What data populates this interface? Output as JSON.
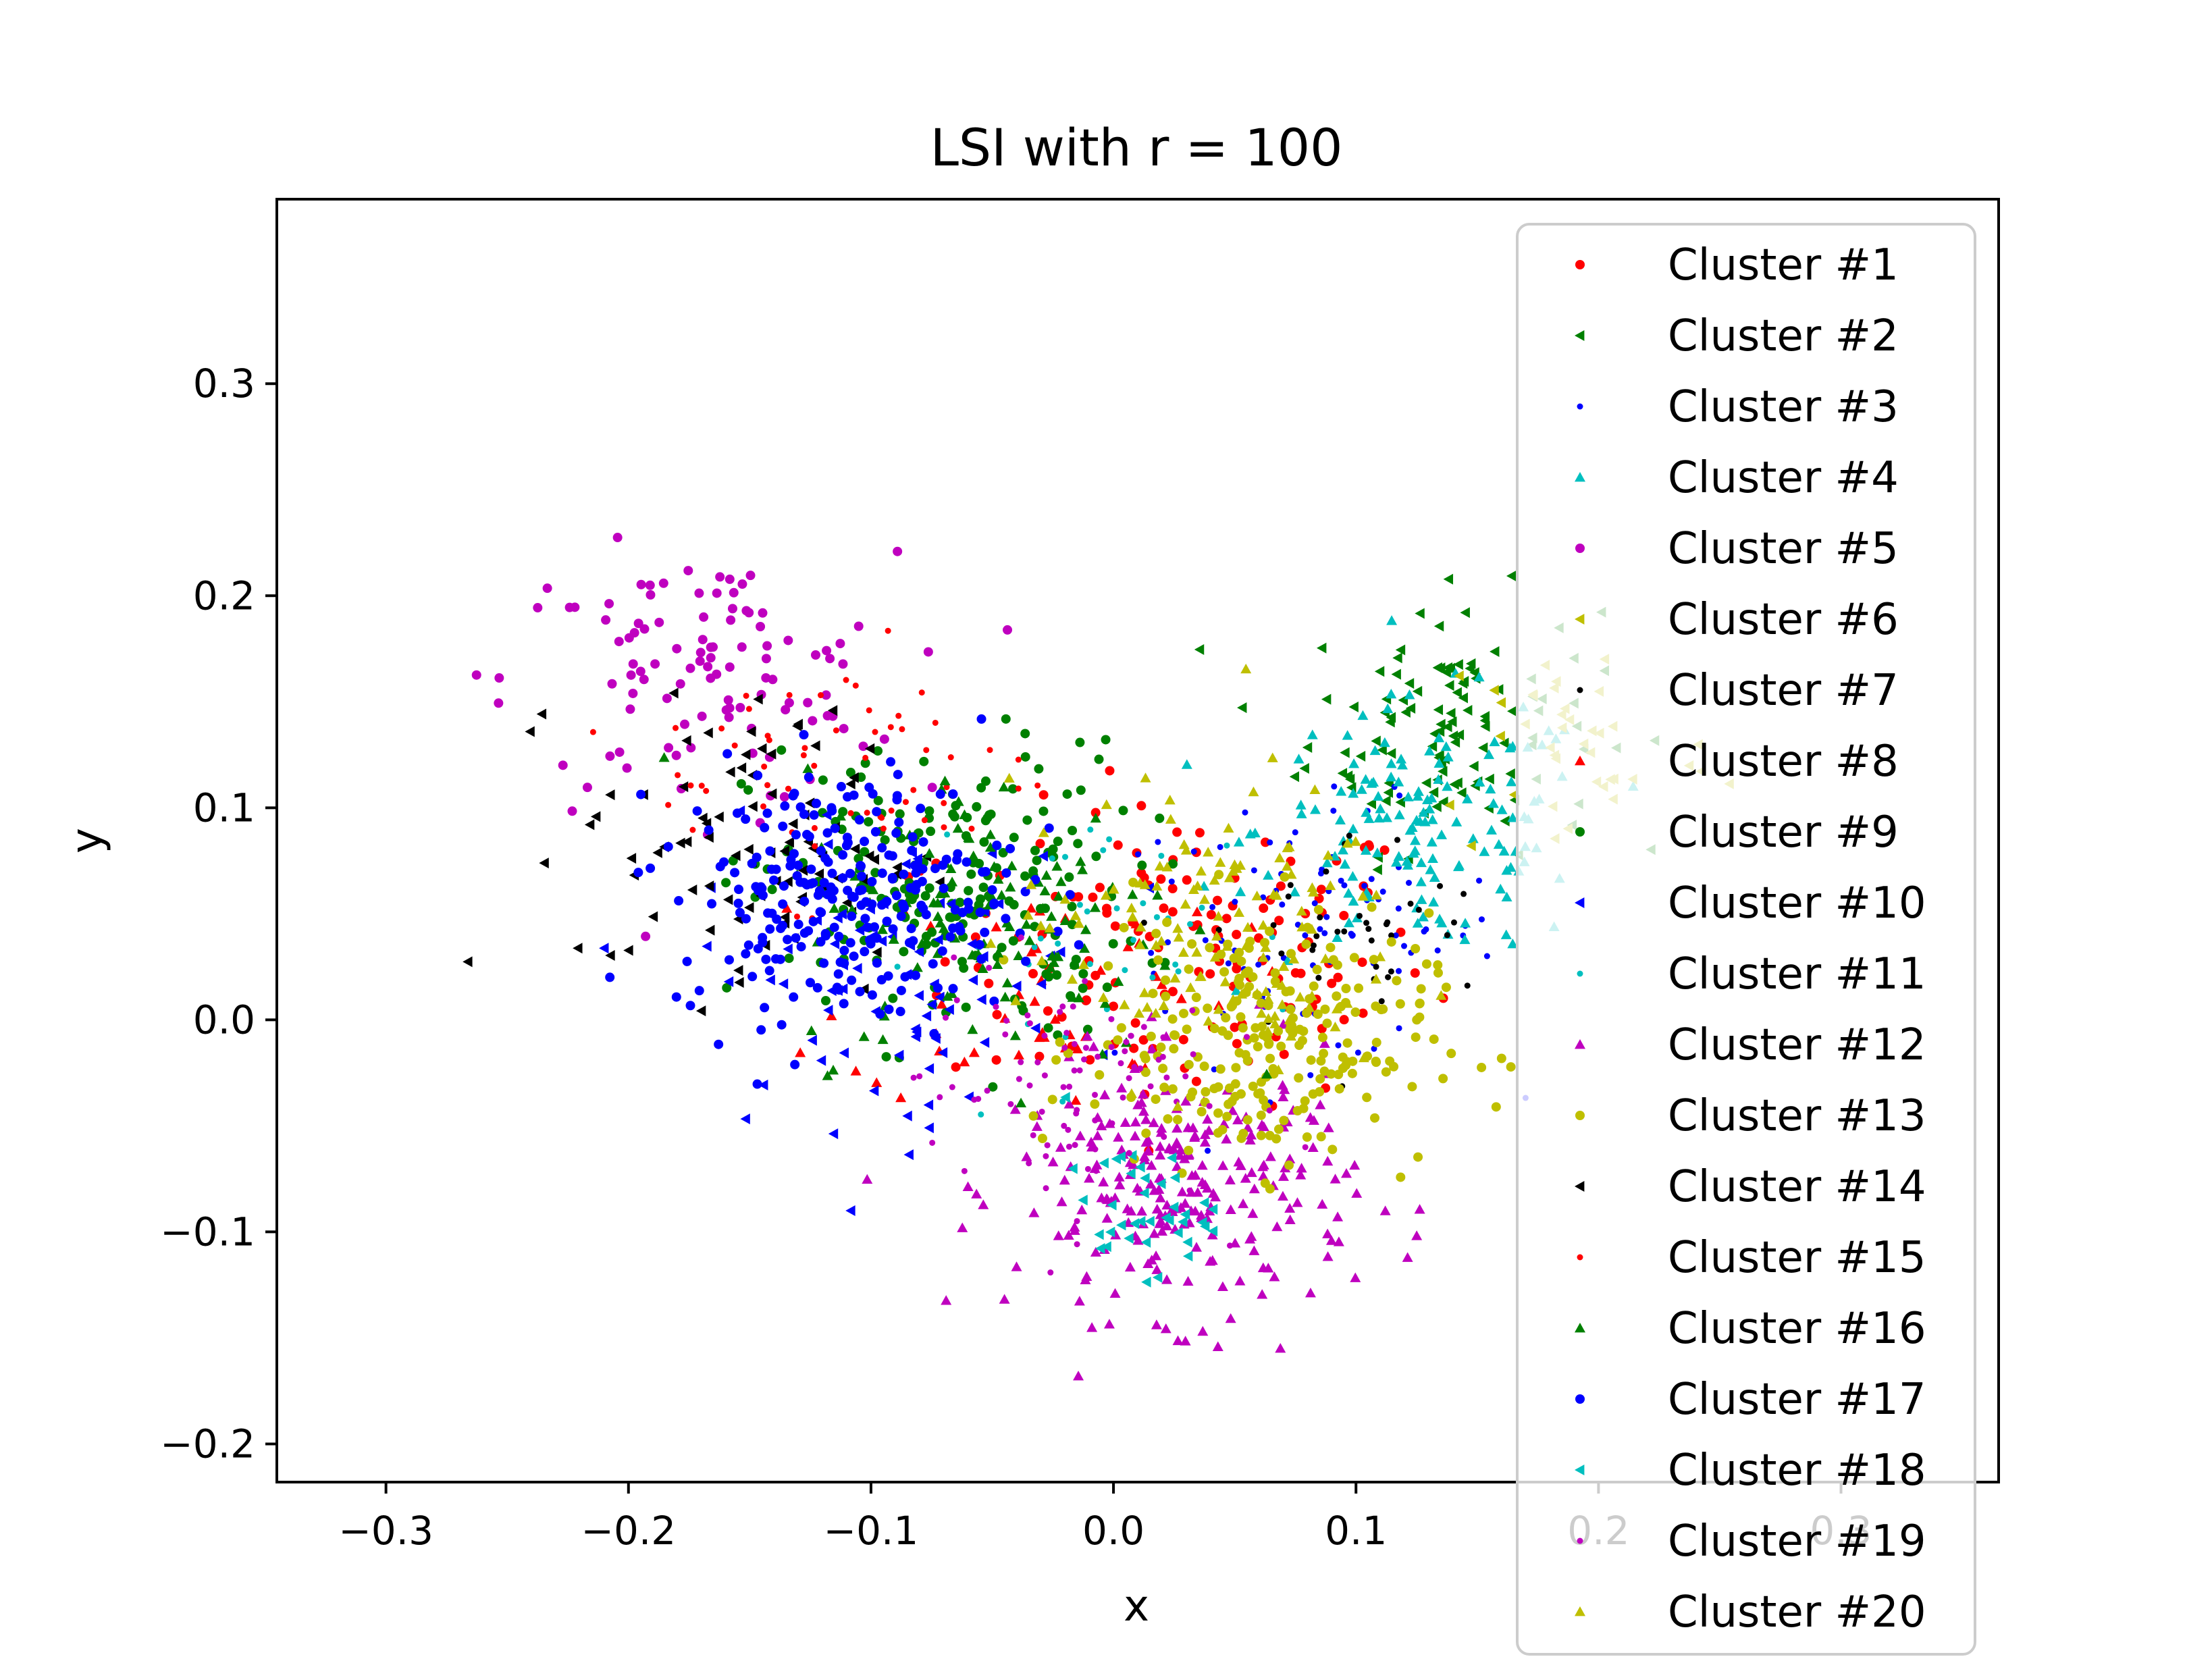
{
  "chart_data": {
    "type": "scatter",
    "title": "LSI with r = 100",
    "xlabel": "x",
    "ylabel": "y",
    "xlim": [
      -0.345,
      0.365
    ],
    "ylim": [
      -0.218,
      0.387
    ],
    "xticks": [
      -0.3,
      -0.2,
      -0.1,
      0.0,
      0.1,
      0.2,
      0.3
    ],
    "xtick_labels": [
      "−0.3",
      "−0.2",
      "−0.1",
      "0.0",
      "0.1",
      "0.2",
      "0.3"
    ],
    "yticks": [
      -0.2,
      -0.1,
      0.0,
      0.1,
      0.2,
      0.3
    ],
    "ytick_labels": [
      "−0.2",
      "−0.1",
      "0.0",
      "0.1",
      "0.2",
      "0.3"
    ],
    "grid": false,
    "legend_position": "right",
    "series": [
      {
        "name": "Cluster #1",
        "color": "#ff0000",
        "marker": "circle",
        "cx": 0.03,
        "cy": 0.03,
        "sx": 0.05,
        "sy": 0.035,
        "n": 140
      },
      {
        "name": "Cluster #2",
        "color": "#008000",
        "marker": "triangle-left",
        "cx": 0.14,
        "cy": 0.14,
        "sx": 0.03,
        "sy": 0.03,
        "n": 120
      },
      {
        "name": "Cluster #3",
        "color": "#0000ff",
        "marker": "point",
        "cx": 0.08,
        "cy": 0.04,
        "sx": 0.04,
        "sy": 0.03,
        "n": 90
      },
      {
        "name": "Cluster #4",
        "color": "#00bfbf",
        "marker": "triangle-up",
        "cx": 0.13,
        "cy": 0.09,
        "sx": 0.035,
        "sy": 0.03,
        "n": 150
      },
      {
        "name": "Cluster #5",
        "color": "#bf00bf",
        "marker": "circle",
        "cx": -0.17,
        "cy": 0.16,
        "sx": 0.04,
        "sy": 0.03,
        "n": 110
      },
      {
        "name": "Cluster #6",
        "color": "#bfbf00",
        "marker": "triangle-left",
        "cx": 0.19,
        "cy": 0.13,
        "sx": 0.03,
        "sy": 0.03,
        "n": 40
      },
      {
        "name": "Cluster #7",
        "color": "#000000",
        "marker": "point",
        "cx": 0.1,
        "cy": 0.04,
        "sx": 0.03,
        "sy": 0.025,
        "n": 40
      },
      {
        "name": "Cluster #8",
        "color": "#ff0000",
        "marker": "triangle-up",
        "cx": -0.03,
        "cy": 0.02,
        "sx": 0.04,
        "sy": 0.03,
        "n": 50
      },
      {
        "name": "Cluster #9",
        "color": "#008000",
        "marker": "circle",
        "cx": -0.07,
        "cy": 0.06,
        "sx": 0.04,
        "sy": 0.035,
        "n": 200
      },
      {
        "name": "Cluster #10",
        "color": "#0000ff",
        "marker": "triangle-left",
        "cx": -0.09,
        "cy": 0.02,
        "sx": 0.04,
        "sy": 0.035,
        "n": 80
      },
      {
        "name": "Cluster #11",
        "color": "#00bfbf",
        "marker": "point",
        "cx": 0.0,
        "cy": 0.04,
        "sx": 0.04,
        "sy": 0.03,
        "n": 40
      },
      {
        "name": "Cluster #12",
        "color": "#bf00bf",
        "marker": "triangle-up",
        "cx": 0.03,
        "cy": -0.08,
        "sx": 0.035,
        "sy": 0.03,
        "n": 260
      },
      {
        "name": "Cluster #13",
        "color": "#bfbf00",
        "marker": "circle",
        "cx": 0.06,
        "cy": -0.01,
        "sx": 0.035,
        "sy": 0.03,
        "n": 240
      },
      {
        "name": "Cluster #14",
        "color": "#000000",
        "marker": "triangle-left",
        "cx": -0.15,
        "cy": 0.08,
        "sx": 0.035,
        "sy": 0.035,
        "n": 90
      },
      {
        "name": "Cluster #15",
        "color": "#ff0000",
        "marker": "point",
        "cx": -0.11,
        "cy": 0.12,
        "sx": 0.04,
        "sy": 0.03,
        "n": 60
      },
      {
        "name": "Cluster #16",
        "color": "#008000",
        "marker": "triangle-up",
        "cx": -0.05,
        "cy": 0.05,
        "sx": 0.04,
        "sy": 0.035,
        "n": 110
      },
      {
        "name": "Cluster #17",
        "color": "#0000ff",
        "marker": "circle",
        "cx": -0.11,
        "cy": 0.06,
        "sx": 0.035,
        "sy": 0.03,
        "n": 260
      },
      {
        "name": "Cluster #18",
        "color": "#00bfbf",
        "marker": "triangle-left",
        "cx": 0.01,
        "cy": -0.09,
        "sx": 0.015,
        "sy": 0.015,
        "n": 40
      },
      {
        "name": "Cluster #19",
        "color": "#bf00bf",
        "marker": "point",
        "cx": -0.02,
        "cy": -0.03,
        "sx": 0.03,
        "sy": 0.03,
        "n": 90
      },
      {
        "name": "Cluster #20",
        "color": "#bfbf00",
        "marker": "triangle-up",
        "cx": 0.04,
        "cy": 0.04,
        "sx": 0.04,
        "sy": 0.035,
        "n": 130
      }
    ]
  }
}
